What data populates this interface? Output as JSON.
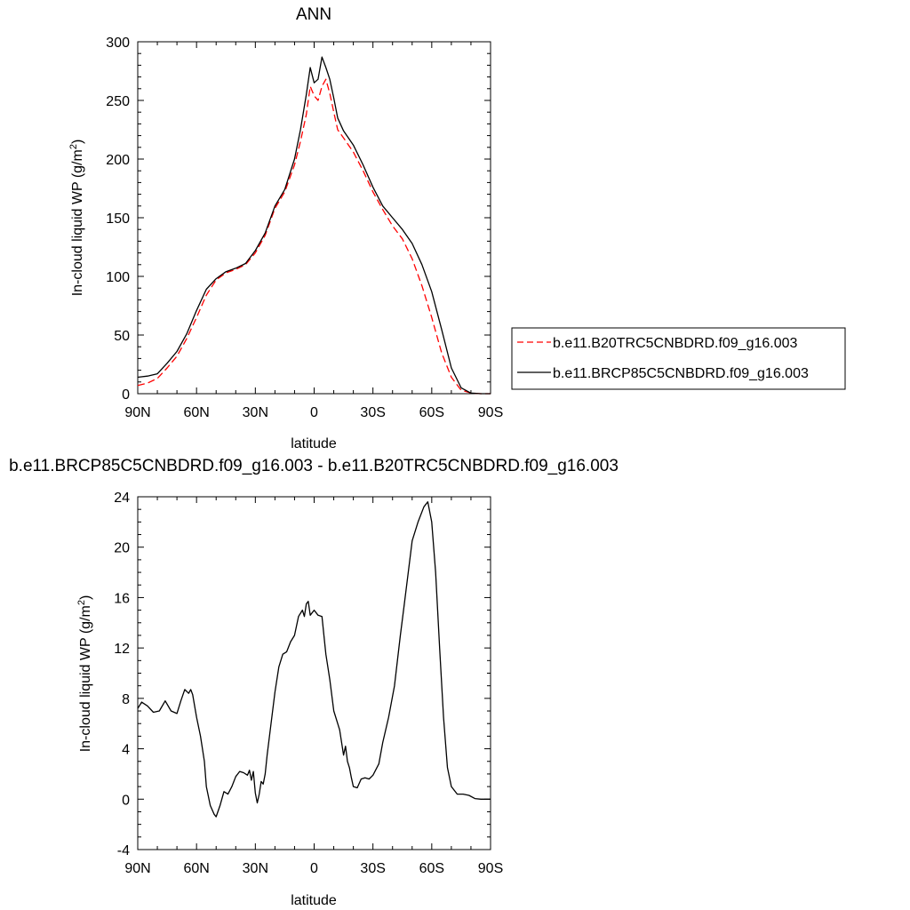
{
  "chart_data": [
    {
      "type": "line",
      "title": "ANN",
      "xlabel": "latitude",
      "ylabel": "In-cloud liquid WP (g/m2)",
      "ylabel_parts": {
        "main": "In-cloud liquid WP (g/m",
        "sup": "2",
        "end": ")"
      },
      "xlim": [
        90,
        -90
      ],
      "ylim": [
        0,
        300
      ],
      "xticks": [
        {
          "value": 90,
          "label": "90N"
        },
        {
          "value": 60,
          "label": "60N"
        },
        {
          "value": 30,
          "label": "30N"
        },
        {
          "value": 0,
          "label": "0"
        },
        {
          "value": -30,
          "label": "30S"
        },
        {
          "value": -60,
          "label": "60S"
        },
        {
          "value": -90,
          "label": "90S"
        }
      ],
      "yticks": [
        0,
        50,
        100,
        150,
        200,
        250,
        300
      ],
      "legend_placement": "right",
      "series": [
        {
          "name": "b.e11.B20TRC5CNBDRD.f09_g16.003",
          "color": "#ff0000",
          "dash": "dashed",
          "points": [
            [
              90,
              7
            ],
            [
              85,
              9
            ],
            [
              80,
              13
            ],
            [
              75,
              22
            ],
            [
              70,
              32
            ],
            [
              65,
              47
            ],
            [
              60,
              65
            ],
            [
              55,
              84
            ],
            [
              50,
              97
            ],
            [
              45,
              103
            ],
            [
              40,
              106
            ],
            [
              35,
              110
            ],
            [
              30,
              120
            ],
            [
              25,
              135
            ],
            [
              20,
              158
            ],
            [
              15,
              172
            ],
            [
              10,
              195
            ],
            [
              7,
              215
            ],
            [
              4,
              238
            ],
            [
              2,
              262
            ],
            [
              0,
              254
            ],
            [
              -2,
              250
            ],
            [
              -4,
              262
            ],
            [
              -6,
              268
            ],
            [
              -8,
              256
            ],
            [
              -10,
              240
            ],
            [
              -12,
              225
            ],
            [
              -15,
              218
            ],
            [
              -20,
              206
            ],
            [
              -25,
              190
            ],
            [
              -30,
              172
            ],
            [
              -35,
              157
            ],
            [
              -40,
              143
            ],
            [
              -45,
              132
            ],
            [
              -50,
              115
            ],
            [
              -55,
              92
            ],
            [
              -60,
              65
            ],
            [
              -65,
              35
            ],
            [
              -70,
              14
            ],
            [
              -75,
              3
            ],
            [
              -80,
              0.5
            ],
            [
              -85,
              0
            ],
            [
              -90,
              0
            ]
          ]
        },
        {
          "name": "b.e11.BRCP85C5CNBDRD.f09_g16.003",
          "color": "#000000",
          "dash": "solid",
          "points": [
            [
              90,
              14
            ],
            [
              85,
              15
            ],
            [
              80,
              17
            ],
            [
              75,
              26
            ],
            [
              70,
              36
            ],
            [
              65,
              51
            ],
            [
              60,
              71
            ],
            [
              55,
              89
            ],
            [
              50,
              98
            ],
            [
              45,
              104
            ],
            [
              40,
              107
            ],
            [
              35,
              111
            ],
            [
              30,
              122
            ],
            [
              25,
              137
            ],
            [
              20,
              160
            ],
            [
              15,
              174
            ],
            [
              10,
              200
            ],
            [
              7,
              225
            ],
            [
              4,
              255
            ],
            [
              2,
              278
            ],
            [
              0,
              265
            ],
            [
              -2,
              268
            ],
            [
              -4,
              287
            ],
            [
              -6,
              278
            ],
            [
              -8,
              268
            ],
            [
              -10,
              252
            ],
            [
              -12,
              235
            ],
            [
              -15,
              224
            ],
            [
              -20,
              212
            ],
            [
              -25,
              195
            ],
            [
              -30,
              176
            ],
            [
              -35,
              160
            ],
            [
              -40,
              150
            ],
            [
              -45,
              140
            ],
            [
              -50,
              128
            ],
            [
              -55,
              110
            ],
            [
              -60,
              87
            ],
            [
              -65,
              55
            ],
            [
              -70,
              22
            ],
            [
              -75,
              5
            ],
            [
              -80,
              0.5
            ],
            [
              -85,
              0
            ],
            [
              -90,
              0
            ]
          ]
        }
      ]
    },
    {
      "type": "line",
      "title": "b.e11.BRCP85C5CNBDRD.f09_g16.003 - b.e11.B20TRC5CNBDRD.f09_g16.003",
      "xlabel": "latitude",
      "ylabel": "In-cloud liquid WP (g/m2)",
      "ylabel_parts": {
        "main": "In-cloud liquid WP (g/m",
        "sup": "2",
        "end": ")"
      },
      "xlim": [
        90,
        -90
      ],
      "ylim": [
        -4,
        24
      ],
      "xticks": [
        {
          "value": 90,
          "label": "90N"
        },
        {
          "value": 60,
          "label": "60N"
        },
        {
          "value": 30,
          "label": "30N"
        },
        {
          "value": 0,
          "label": "0"
        },
        {
          "value": -30,
          "label": "30S"
        },
        {
          "value": -60,
          "label": "60S"
        },
        {
          "value": -90,
          "label": "90S"
        }
      ],
      "yticks": [
        -4,
        0,
        4,
        8,
        12,
        16,
        20,
        24
      ],
      "series": [
        {
          "color": "#000000",
          "dash": "solid",
          "points": [
            [
              90,
              7.2
            ],
            [
              88,
              7.7
            ],
            [
              85,
              7.4
            ],
            [
              82,
              6.9
            ],
            [
              79,
              7.0
            ],
            [
              76,
              7.8
            ],
            [
              73,
              7.0
            ],
            [
              70,
              6.8
            ],
            [
              68,
              7.8
            ],
            [
              66,
              8.7
            ],
            [
              64,
              8.4
            ],
            [
              63,
              8.7
            ],
            [
              62,
              8.3
            ],
            [
              60,
              6.5
            ],
            [
              58,
              5.0
            ],
            [
              56,
              3.0
            ],
            [
              55,
              1.0
            ],
            [
              53,
              -0.5
            ],
            [
              51,
              -1.2
            ],
            [
              50,
              -1.4
            ],
            [
              48,
              -0.5
            ],
            [
              46,
              0.6
            ],
            [
              44,
              0.4
            ],
            [
              42,
              1.0
            ],
            [
              40,
              1.8
            ],
            [
              38,
              2.2
            ],
            [
              36,
              2.1
            ],
            [
              34,
              1.9
            ],
            [
              33,
              2.3
            ],
            [
              32,
              1.5
            ],
            [
              31,
              2.2
            ],
            [
              30,
              0.5
            ],
            [
              29,
              -0.3
            ],
            [
              28,
              0.4
            ],
            [
              27,
              1.4
            ],
            [
              26,
              1.2
            ],
            [
              25,
              2.0
            ],
            [
              24,
              3.5
            ],
            [
              22,
              6.0
            ],
            [
              20,
              8.5
            ],
            [
              18,
              10.5
            ],
            [
              16,
              11.5
            ],
            [
              14,
              11.7
            ],
            [
              12,
              12.5
            ],
            [
              10,
              13.0
            ],
            [
              8,
              14.5
            ],
            [
              6,
              15.0
            ],
            [
              5,
              14.5
            ],
            [
              4,
              15.5
            ],
            [
              3,
              15.7
            ],
            [
              2,
              14.6
            ],
            [
              0,
              15.0
            ],
            [
              -2,
              14.6
            ],
            [
              -4,
              14.5
            ],
            [
              -5,
              13.0
            ],
            [
              -6,
              11.5
            ],
            [
              -8,
              9.5
            ],
            [
              -10,
              7.0
            ],
            [
              -12,
              6.0
            ],
            [
              -13,
              5.5
            ],
            [
              -14,
              4.5
            ],
            [
              -15,
              3.5
            ],
            [
              -16,
              4.2
            ],
            [
              -17,
              3.0
            ],
            [
              -18,
              2.5
            ],
            [
              -19,
              1.7
            ],
            [
              -20,
              1.0
            ],
            [
              -22,
              0.9
            ],
            [
              -24,
              1.6
            ],
            [
              -26,
              1.7
            ],
            [
              -28,
              1.6
            ],
            [
              -30,
              1.9
            ],
            [
              -33,
              2.8
            ],
            [
              -35,
              4.5
            ],
            [
              -38,
              6.5
            ],
            [
              -41,
              9.0
            ],
            [
              -44,
              13.0
            ],
            [
              -46,
              15.5
            ],
            [
              -48,
              18.0
            ],
            [
              -50,
              20.5
            ],
            [
              -53,
              22.0
            ],
            [
              -56,
              23.2
            ],
            [
              -58,
              23.6
            ],
            [
              -60,
              22.0
            ],
            [
              -62,
              18.0
            ],
            [
              -64,
              12.0
            ],
            [
              -66,
              6.5
            ],
            [
              -68,
              2.5
            ],
            [
              -70,
              1.0
            ],
            [
              -73,
              0.4
            ],
            [
              -76,
              0.4
            ],
            [
              -79,
              0.3
            ],
            [
              -82,
              0.05
            ],
            [
              -85,
              0
            ],
            [
              -90,
              0
            ]
          ]
        }
      ]
    }
  ]
}
